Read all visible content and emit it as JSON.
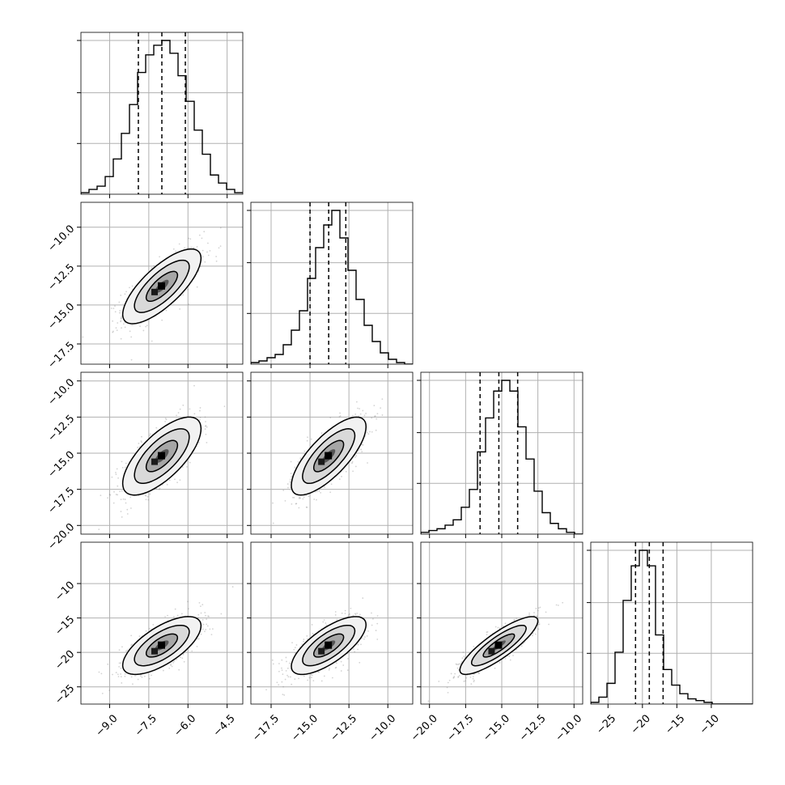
{
  "chart_data": {
    "type": "corner",
    "grid": true,
    "n_params": 4,
    "colors": {
      "line": "#000000",
      "grid": "#b0b0b0",
      "points": "#808080"
    },
    "ranges": [
      [
        -10.1,
        -3.9
      ],
      [
        -18.8,
        -8.4
      ],
      [
        -20.6,
        -9.4
      ],
      [
        -27.5,
        -4.0
      ]
    ],
    "ticks": [
      [
        -9.0,
        -7.5,
        -6.0,
        -4.5
      ],
      [
        -17.5,
        -15.0,
        -12.5,
        -10.0
      ],
      [
        -20.0,
        -17.5,
        -15.0,
        -12.5,
        -10.0
      ],
      [
        -25,
        -20,
        -15,
        -10
      ]
    ],
    "tick_labels": [
      [
        "−9.0",
        "−7.5",
        "−6.0",
        "−4.5"
      ],
      [
        "−17.5",
        "−15.0",
        "−12.5",
        "−10.0"
      ],
      [
        "−20.0",
        "−17.5",
        "−15.0",
        "−12.5",
        "−10.0"
      ],
      [
        "−25",
        "−20",
        "−15",
        "−10"
      ]
    ],
    "quantiles": [
      [
        -7.9,
        -7.0,
        -6.1
      ],
      [
        -15.0,
        -13.8,
        -12.7
      ],
      [
        -16.5,
        -15.2,
        -13.9
      ],
      [
        -21.0,
        -19.0,
        -17.0
      ]
    ],
    "histograms": [
      {
        "edges_range": [
          -10.1,
          -3.9
        ],
        "counts": [
          1,
          3,
          5,
          11,
          22,
          38,
          56,
          76,
          87,
          93,
          96,
          88,
          74,
          58,
          40,
          25,
          12,
          7,
          3,
          1
        ]
      },
      {
        "edges_range": [
          -18.8,
          -8.4
        ],
        "counts": [
          1,
          2,
          4,
          6,
          12,
          21,
          33,
          53,
          72,
          86,
          95,
          78,
          58,
          40,
          24,
          14,
          7,
          3,
          1,
          0
        ]
      },
      {
        "edges_range": [
          -20.6,
          -9.4
        ],
        "counts": [
          1,
          2,
          3,
          5,
          8,
          15,
          25,
          46,
          65,
          80,
          86,
          80,
          60,
          42,
          24,
          12,
          6,
          3,
          1,
          0
        ]
      },
      {
        "edges_range": [
          -27.5,
          -4.0
        ],
        "counts": [
          1,
          4,
          12,
          30,
          60,
          80,
          89,
          80,
          40,
          20,
          11,
          6,
          3,
          2,
          1,
          0,
          0,
          0,
          0,
          0
        ]
      }
    ],
    "means": [
      -7.0,
      -13.8,
      -15.2,
      -19.0
    ],
    "stds": [
      0.75,
      1.2,
      1.35,
      2.1
    ],
    "correlations": [
      [
        1.0,
        0.75,
        0.7,
        0.68
      ],
      [
        0.75,
        1.0,
        0.75,
        0.72
      ],
      [
        0.7,
        0.75,
        1.0,
        0.85
      ],
      [
        0.68,
        0.72,
        0.85,
        1.0
      ]
    ]
  }
}
